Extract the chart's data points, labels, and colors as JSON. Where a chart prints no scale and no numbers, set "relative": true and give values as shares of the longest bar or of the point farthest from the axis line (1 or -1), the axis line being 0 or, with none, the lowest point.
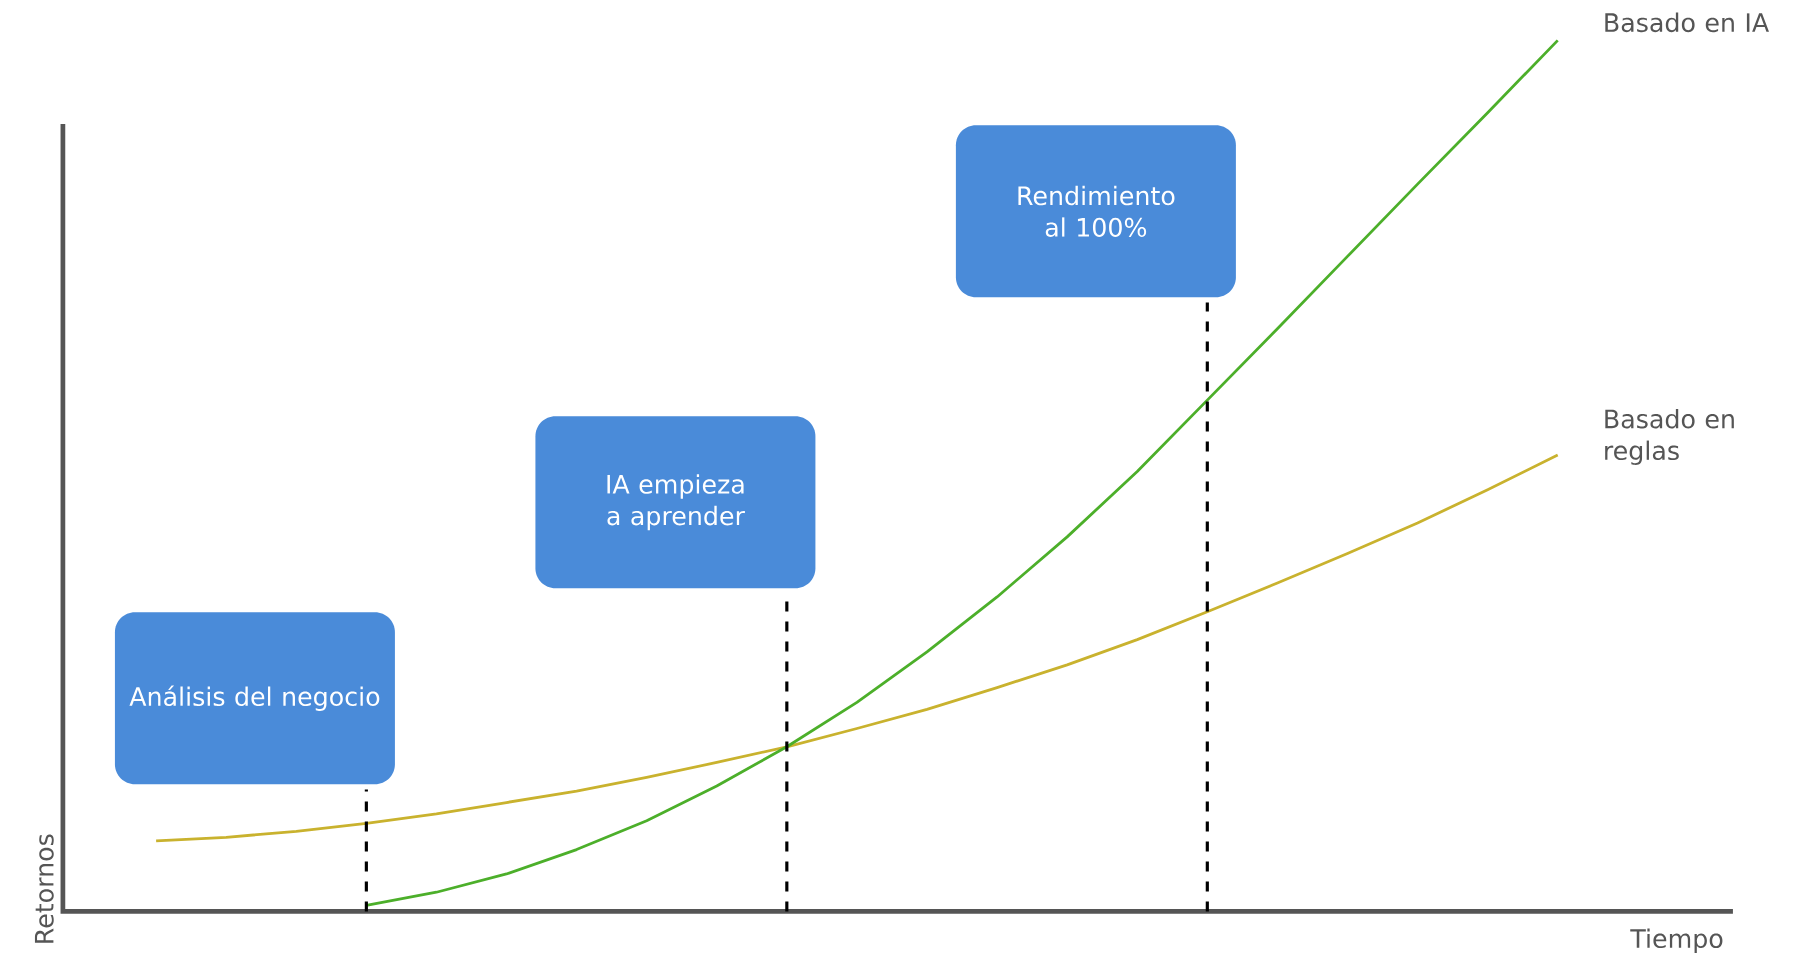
{
  "chart_data": {
    "type": "line",
    "relative": true,
    "marker": "none",
    "line_style": "solid",
    "xlabel": "Tiempo",
    "ylabel": "Retornos",
    "categories": [
      null,
      null,
      null,
      null,
      null,
      null,
      null,
      null,
      null,
      null,
      null,
      null,
      null,
      null,
      null,
      null,
      null,
      null,
      null,
      null,
      null
    ],
    "series": [
      {
        "name": "Basado en reglas",
        "color": "#c9b22e",
        "values": [
          0.081,
          0.085,
          0.092,
          0.101,
          0.112,
          0.125,
          0.138,
          0.154,
          0.171,
          0.189,
          0.21,
          0.232,
          0.257,
          0.283,
          0.312,
          0.344,
          0.377,
          0.411,
          0.446,
          0.484,
          0.524
        ]
      },
      {
        "name": "Basado en IA",
        "color": "#4caf2a",
        "values": [
          null,
          null,
          null,
          0.007,
          0.022,
          0.043,
          0.071,
          0.104,
          0.144,
          0.189,
          0.24,
          0.298,
          0.361,
          0.43,
          0.505,
          0.587,
          0.669,
          0.752,
          0.835,
          0.917,
          1
        ]
      }
    ],
    "annotations": [
      "Análisis del negocio",
      "IA empieza a aprender",
      "Rendimiento al 100%"
    ]
  }
}
